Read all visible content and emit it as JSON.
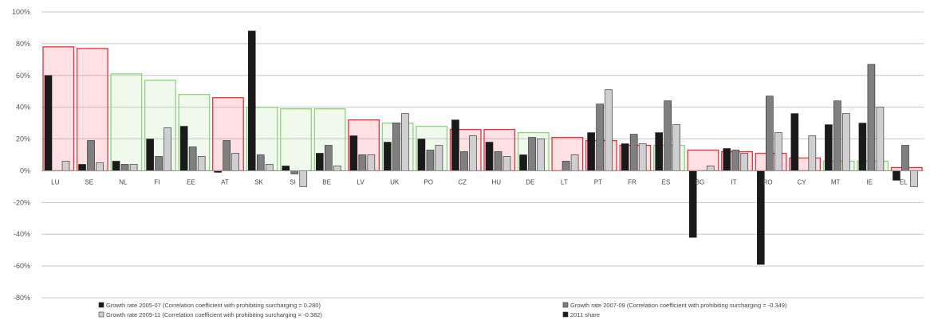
{
  "chart_data": {
    "type": "bar",
    "categories": [
      "LU",
      "SE",
      "NL",
      "FI",
      "EE",
      "AT",
      "SK",
      "SI",
      "BE",
      "LV",
      "UK",
      "PO",
      "CZ",
      "HU",
      "DE",
      "LT",
      "PT",
      "FR",
      "ES",
      "BG",
      "IT",
      "RO",
      "CY",
      "MT",
      "IE",
      "EL"
    ],
    "ylim": [
      -80,
      100
    ],
    "yticks": [
      -80,
      -60,
      -40,
      -20,
      0,
      20,
      40,
      60,
      80,
      100
    ],
    "ytick_labels": [
      "-80%",
      "-60%",
      "-40%",
      "-20%",
      "0%",
      "20%",
      "40%",
      "60%",
      "80%",
      "100%"
    ],
    "grid": true,
    "legend_position": "bottom",
    "series": [
      {
        "name": "Growth rate 2005-07 (Correlation coefficient with prohibiting surcharging = 0.280)",
        "kind": "bar",
        "color": "#1a1a1a",
        "values": [
          60,
          4,
          6,
          20,
          28,
          -1,
          88,
          3,
          11,
          22,
          18,
          20,
          32,
          18,
          10,
          0,
          24,
          17,
          24,
          -42,
          14,
          -59,
          36,
          29,
          30,
          -6
        ]
      },
      {
        "name": "Growth rate 2007-09 (Correlation coefficient with prohibiting surcharging = -0.349)",
        "kind": "bar",
        "color": "#7f7f7f",
        "values": [
          0,
          19,
          4,
          9,
          15,
          19,
          10,
          -2,
          16,
          10,
          30,
          13,
          12,
          12,
          21,
          6,
          42,
          23,
          44,
          0,
          13,
          47,
          0,
          44,
          67,
          16
        ]
      },
      {
        "name": "Growth rate 2009-11 (Correlation coefficient with prohibiting surcharging = -0.382)",
        "kind": "bar",
        "color": "#cfcfcf",
        "values": [
          6,
          5,
          4,
          27,
          9,
          11,
          4,
          -10,
          3,
          10,
          36,
          16,
          22,
          9,
          20,
          10,
          51,
          17,
          29,
          3,
          11,
          24,
          22,
          36,
          40,
          -10
        ]
      },
      {
        "name": "2011 share",
        "kind": "box",
        "color": "#1a1a1a",
        "values": [
          78,
          77,
          61,
          57,
          48,
          46,
          40,
          39,
          39,
          32,
          30,
          28,
          26,
          26,
          24,
          21,
          19,
          16,
          16,
          13,
          12,
          11,
          8,
          6,
          6,
          2
        ],
        "box_colors": [
          "red",
          "red",
          "green",
          "green",
          "green",
          "red",
          "green",
          "green",
          "green",
          "red",
          "green",
          "green",
          "red",
          "red",
          "green",
          "red",
          "red",
          "red",
          "green",
          "red",
          "red",
          "red",
          "red",
          "green",
          "green",
          "red"
        ]
      }
    ]
  }
}
